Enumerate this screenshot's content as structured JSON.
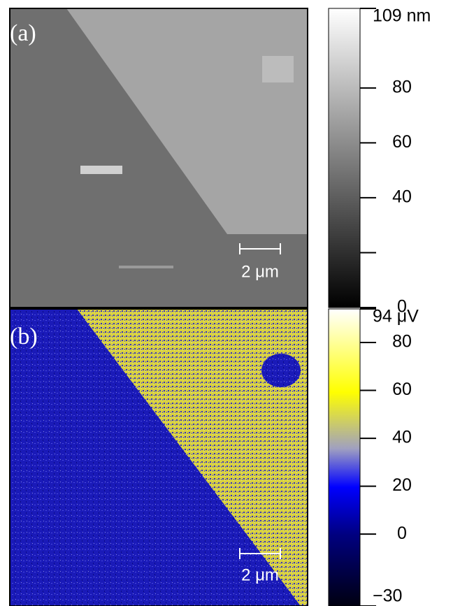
{
  "panels": [
    {
      "label": "(a)",
      "scale_bar": "2 μm",
      "colorbar": {
        "min": 0,
        "max": 109,
        "ticks": [
          {
            "value": 109,
            "label": "109 nm"
          },
          80,
          60,
          40,
          {
            "value": 20
          },
          0
        ]
      }
    },
    {
      "label": "(b)",
      "scale_bar": "2 μm",
      "colorbar": {
        "min": -30,
        "max": 94,
        "ticks": [
          {
            "value": 94,
            "label": "94 μV"
          },
          80,
          60,
          40,
          20,
          0,
          {
            "value": -30,
            "label": "−30"
          }
        ]
      }
    }
  ]
}
